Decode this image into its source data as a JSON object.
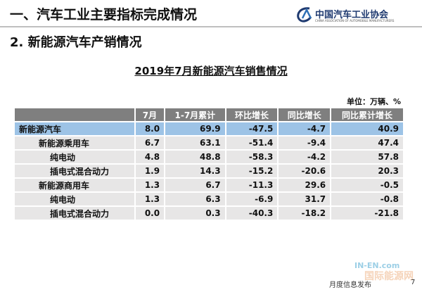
{
  "header": {
    "title": "一、汽车工业主要指标完成情况",
    "logo_name": "中国汽车工业协会",
    "logo_subtitle": "CHINA ASSOCIATION OF AUTOMOBILE MANUFACTURERS"
  },
  "subtitle": "2. 新能源汽车产销情况",
  "table": {
    "title": "2019年7月新能源汽车销售情况",
    "unit": "单位：万辆、%",
    "columns": [
      "7月",
      "1-7月累计",
      "环比增长",
      "同比增长",
      "同比累计增长"
    ],
    "rows": [
      [
        "新能源汽车",
        "8.0",
        "69.9",
        "-47.5",
        "-4.7",
        "40.9"
      ],
      [
        "新能源乘用车",
        "6.7",
        "63.1",
        "-51.4",
        "-9.4",
        "47.4"
      ],
      [
        "纯电动",
        "4.8",
        "48.8",
        "-58.3",
        "-4.2",
        "57.8"
      ],
      [
        "插电式混合动力",
        "1.9",
        "14.3",
        "-15.2",
        "-20.6",
        "20.3"
      ],
      [
        "新能源商用车",
        "1.3",
        "6.7",
        "-11.3",
        "29.6",
        "-0.5"
      ],
      [
        "纯电动",
        "1.3",
        "6.3",
        "-6.9",
        "31.7",
        "-0.8"
      ],
      [
        "插电式混合动力",
        "0.0",
        "0.3",
        "-40.3",
        "-18.2",
        "-21.8"
      ]
    ]
  },
  "footer": {
    "text": "月度信息发布",
    "page": "7"
  },
  "watermark": {
    "site": "IN-EN.com",
    "name": "国际能源网"
  }
}
